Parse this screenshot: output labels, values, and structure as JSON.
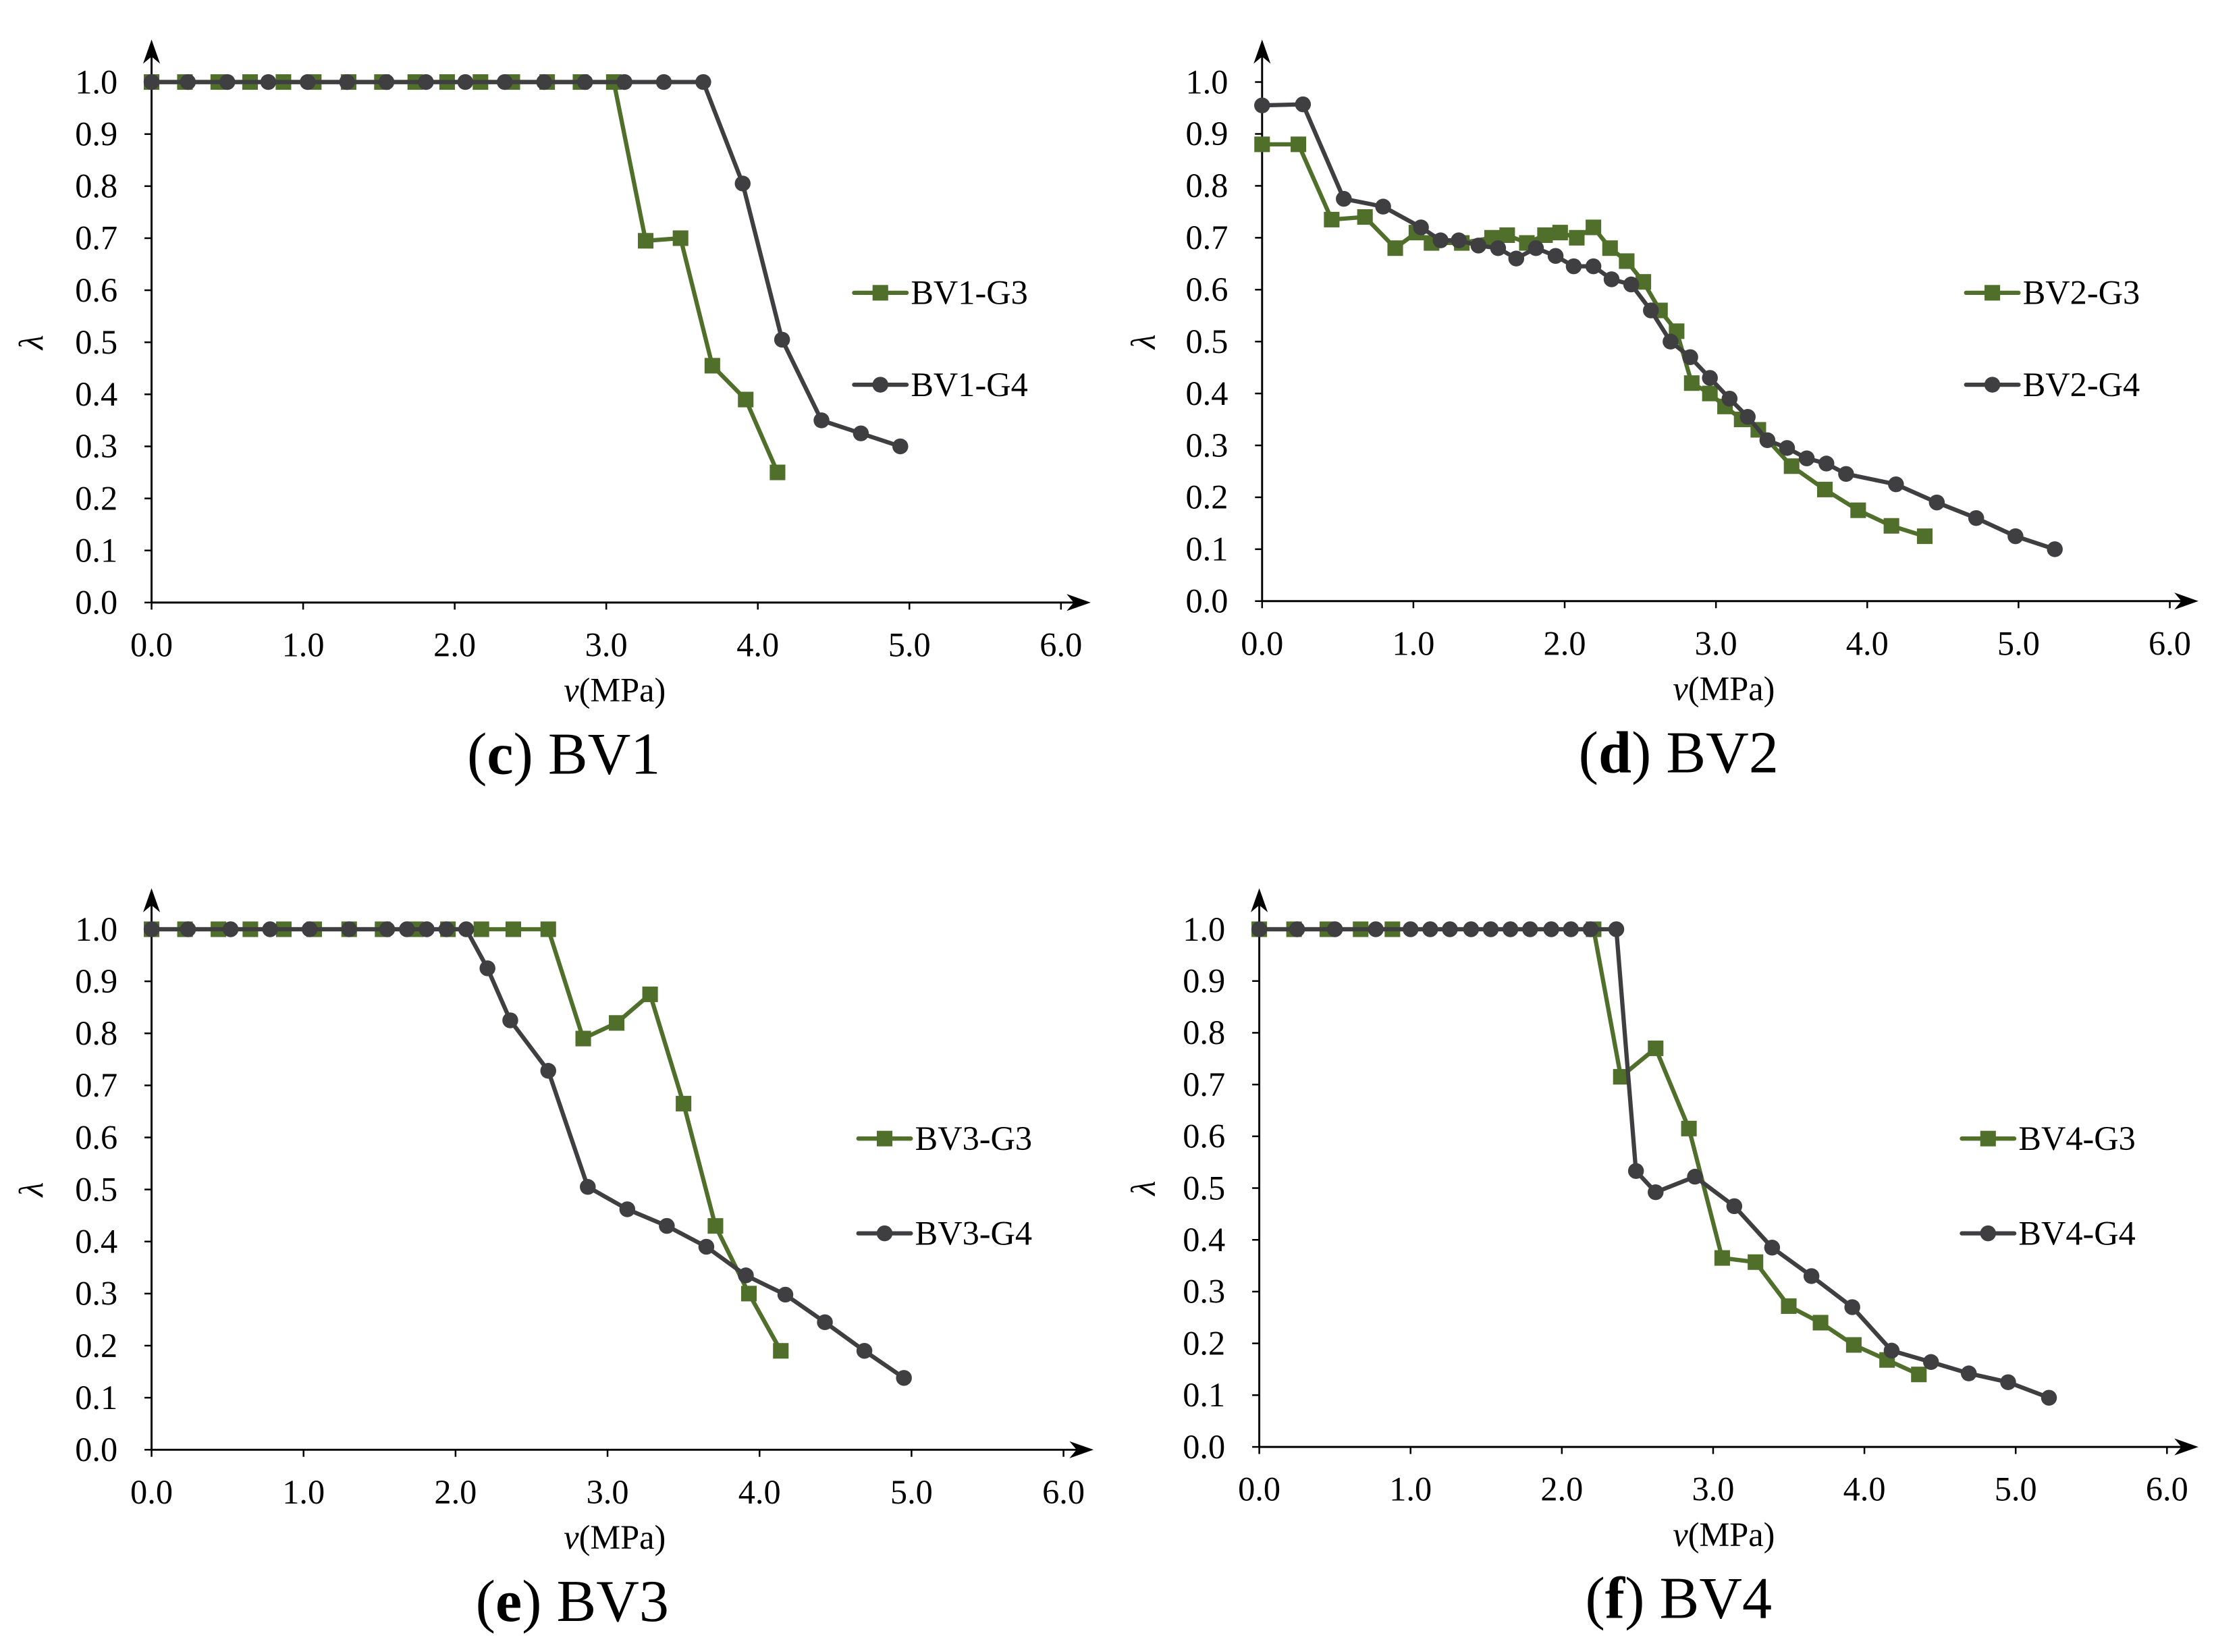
{
  "chart_data": [
    {
      "type": "line",
      "caption": {
        "prefix": "(",
        "letter": "c",
        "suffix": ") BV1"
      },
      "xlabel": {
        "symbol": "v",
        "unit": "(MPa)"
      },
      "ylabel": "λ",
      "xlim": [
        0,
        6
      ],
      "ylim": [
        0,
        1
      ],
      "xticks": [
        "0.0",
        "1.0",
        "2.0",
        "3.0",
        "4.0",
        "5.0",
        "6.0"
      ],
      "yticks": [
        "0.0",
        "0.1",
        "0.2",
        "0.3",
        "0.4",
        "0.5",
        "0.6",
        "0.7",
        "0.8",
        "0.9",
        "1.0"
      ],
      "legend_position": "right",
      "series": [
        {
          "name": "BV1-G3",
          "color": "#4f6f2a",
          "marker": "square",
          "x": [
            0,
            0.22,
            0.44,
            0.65,
            0.87,
            1.07,
            1.3,
            1.52,
            1.74,
            1.95,
            2.17,
            2.38,
            2.61,
            2.83,
            3.05,
            3.26,
            3.49,
            3.7,
            3.92,
            4.13
          ],
          "y": [
            1,
            1,
            1,
            1,
            1,
            1,
            1,
            1,
            1,
            1,
            1,
            1,
            1,
            1,
            1,
            0.695,
            0.7,
            0.455,
            0.39,
            0.25
          ]
        },
        {
          "name": "BV1-G4",
          "color": "#3f3f41",
          "marker": "circle",
          "x": [
            0,
            0.24,
            0.5,
            0.77,
            1.03,
            1.29,
            1.55,
            1.81,
            2.07,
            2.33,
            2.59,
            2.86,
            3.12,
            3.38,
            3.64,
            3.9,
            4.16,
            4.42,
            4.68,
            4.94
          ],
          "y": [
            1,
            1,
            1,
            1,
            1,
            1,
            1,
            1,
            1,
            1,
            1,
            1,
            1,
            1,
            1,
            0.805,
            0.505,
            0.35,
            0.325,
            0.3
          ]
        }
      ]
    },
    {
      "type": "line",
      "caption": {
        "prefix": "(",
        "letter": "d",
        "suffix": ") BV2"
      },
      "xlabel": {
        "symbol": "v",
        "unit": "(MPa)"
      },
      "ylabel": "λ",
      "xlim": [
        0,
        6
      ],
      "ylim": [
        0,
        1
      ],
      "xticks": [
        "0.0",
        "1.0",
        "2.0",
        "3.0",
        "4.0",
        "5.0",
        "6.0"
      ],
      "yticks": [
        "0.0",
        "0.1",
        "0.2",
        "0.3",
        "0.4",
        "0.5",
        "0.6",
        "0.7",
        "0.8",
        "0.9",
        "1.0"
      ],
      "legend_position": "right",
      "series": [
        {
          "name": "BV2-G3",
          "color": "#4f6f2a",
          "marker": "square",
          "x": [
            0,
            0.24,
            0.46,
            0.68,
            0.88,
            1.02,
            1.12,
            1.32,
            1.52,
            1.62,
            1.75,
            1.87,
            1.97,
            2.08,
            2.19,
            2.3,
            2.41,
            2.52,
            2.63,
            2.74,
            2.84,
            2.96,
            3.06,
            3.17,
            3.28,
            3.5,
            3.72,
            3.94,
            4.16,
            4.38
          ],
          "y": [
            0.88,
            0.88,
            0.735,
            0.74,
            0.68,
            0.71,
            0.69,
            0.69,
            0.7,
            0.705,
            0.69,
            0.705,
            0.71,
            0.7,
            0.72,
            0.68,
            0.655,
            0.615,
            0.56,
            0.52,
            0.42,
            0.4,
            0.375,
            0.35,
            0.33,
            0.26,
            0.215,
            0.175,
            0.145,
            0.125
          ]
        },
        {
          "name": "BV2-G4",
          "color": "#3f3f41",
          "marker": "circle",
          "x": [
            0,
            0.27,
            0.54,
            0.8,
            1.05,
            1.18,
            1.3,
            1.43,
            1.56,
            1.68,
            1.81,
            1.94,
            2.06,
            2.19,
            2.31,
            2.44,
            2.57,
            2.7,
            2.83,
            2.96,
            3.09,
            3.21,
            3.34,
            3.47,
            3.6,
            3.73,
            3.86,
            4.19,
            4.46,
            4.72,
            4.98,
            5.24
          ],
          "y": [
            0.955,
            0.957,
            0.775,
            0.76,
            0.72,
            0.695,
            0.695,
            0.685,
            0.68,
            0.66,
            0.68,
            0.665,
            0.645,
            0.645,
            0.62,
            0.61,
            0.56,
            0.5,
            0.47,
            0.43,
            0.39,
            0.355,
            0.31,
            0.295,
            0.275,
            0.265,
            0.245,
            0.225,
            0.19,
            0.16,
            0.125,
            0.1
          ]
        }
      ]
    },
    {
      "type": "line",
      "caption": {
        "prefix": "(",
        "letter": "e",
        "suffix": ") BV3"
      },
      "xlabel": {
        "symbol": "v",
        "unit": "(MPa)"
      },
      "ylabel": "λ",
      "xlim": [
        0,
        6
      ],
      "ylim": [
        0,
        1
      ],
      "xticks": [
        "0.0",
        "1.0",
        "2.0",
        "3.0",
        "4.0",
        "5.0",
        "6.0"
      ],
      "yticks": [
        "0.0",
        "0.1",
        "0.2",
        "0.3",
        "0.4",
        "0.5",
        "0.6",
        "0.7",
        "0.8",
        "0.9",
        "1.0"
      ],
      "legend_position": "right",
      "series": [
        {
          "name": "BV3-G3",
          "color": "#4f6f2a",
          "marker": "square",
          "x": [
            0,
            0.22,
            0.44,
            0.65,
            0.87,
            1.07,
            1.3,
            1.52,
            1.74,
            1.95,
            2.17,
            2.38,
            2.61,
            2.84,
            3.06,
            3.28,
            3.5,
            3.71,
            3.93,
            4.14
          ],
          "y": [
            1,
            1,
            1,
            1,
            1,
            1,
            1,
            1,
            1,
            1,
            1,
            1,
            1,
            0.79,
            0.82,
            0.875,
            0.665,
            0.43,
            0.3,
            0.19
          ]
        },
        {
          "name": "BV3-G4",
          "color": "#3f3f41",
          "marker": "circle",
          "x": [
            0,
            0.24,
            0.52,
            0.78,
            1.04,
            1.3,
            1.55,
            1.68,
            1.81,
            1.94,
            2.07,
            2.21,
            2.36,
            2.61,
            2.87,
            3.13,
            3.39,
            3.65,
            3.91,
            4.17,
            4.43,
            4.69,
            4.95
          ],
          "y": [
            1,
            1,
            1,
            1,
            1,
            1,
            1,
            1,
            1,
            1,
            1,
            0.925,
            0.825,
            0.728,
            0.505,
            0.462,
            0.43,
            0.39,
            0.335,
            0.298,
            0.245,
            0.19,
            0.138
          ]
        }
      ]
    },
    {
      "type": "line",
      "caption": {
        "prefix": "(",
        "letter": "f",
        "suffix": ") BV4"
      },
      "xlabel": {
        "symbol": "v",
        "unit": "(MPa)"
      },
      "ylabel": "λ",
      "xlim": [
        0,
        6
      ],
      "ylim": [
        0,
        1
      ],
      "xticks": [
        "0.0",
        "1.0",
        "2.0",
        "3.0",
        "4.0",
        "5.0",
        "6.0"
      ],
      "yticks": [
        "0.0",
        "0.1",
        "0.2",
        "0.3",
        "0.4",
        "0.5",
        "0.6",
        "0.7",
        "0.8",
        "0.9",
        "1.0"
      ],
      "legend_position": "right",
      "series": [
        {
          "name": "BV4-G3",
          "color": "#4f6f2a",
          "marker": "square",
          "x": [
            0,
            0.23,
            0.45,
            0.67,
            0.88,
            2.21,
            2.39,
            2.62,
            2.84,
            3.06,
            3.28,
            3.5,
            3.71,
            3.93,
            4.15,
            4.36
          ],
          "y": [
            1,
            1,
            1,
            1,
            1,
            1,
            0.715,
            0.77,
            0.615,
            0.365,
            0.357,
            0.272,
            0.24,
            0.197,
            0.168,
            0.14
          ]
        },
        {
          "name": "BV4-G4",
          "color": "#3f3f41",
          "marker": "circle",
          "x": [
            0,
            0.25,
            0.5,
            0.77,
            1.0,
            1.13,
            1.26,
            1.4,
            1.53,
            1.66,
            1.79,
            1.93,
            2.06,
            2.19,
            2.36,
            2.49,
            2.62,
            2.88,
            3.14,
            3.39,
            3.65,
            3.92,
            4.18,
            4.44,
            4.69,
            4.95,
            5.22
          ],
          "y": [
            1,
            1,
            1,
            1,
            1,
            1,
            1,
            1,
            1,
            1,
            1,
            1,
            1,
            1,
            1,
            0.533,
            0.492,
            0.522,
            0.465,
            0.385,
            0.33,
            0.27,
            0.186,
            0.164,
            0.142,
            0.125,
            0.095
          ]
        }
      ]
    }
  ]
}
